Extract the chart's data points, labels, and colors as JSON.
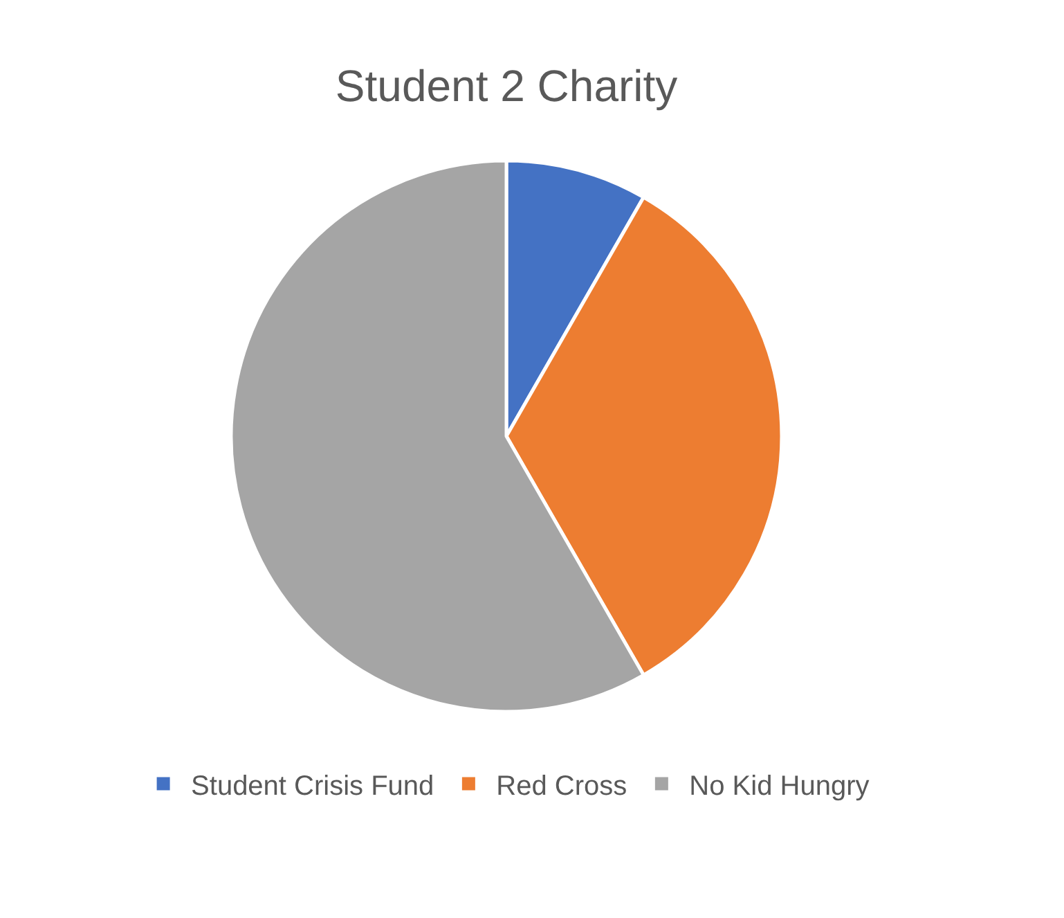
{
  "chart_data": {
    "type": "pie",
    "title": "Student 2 Charity",
    "categories": [
      "Student Crisis Fund",
      "Red Cross",
      "No Kid Hungry"
    ],
    "values": [
      8.3,
      33.4,
      58.3
    ],
    "colors": [
      "#4472c4",
      "#ed7d31",
      "#a5a5a5"
    ],
    "legend": "bottom"
  }
}
